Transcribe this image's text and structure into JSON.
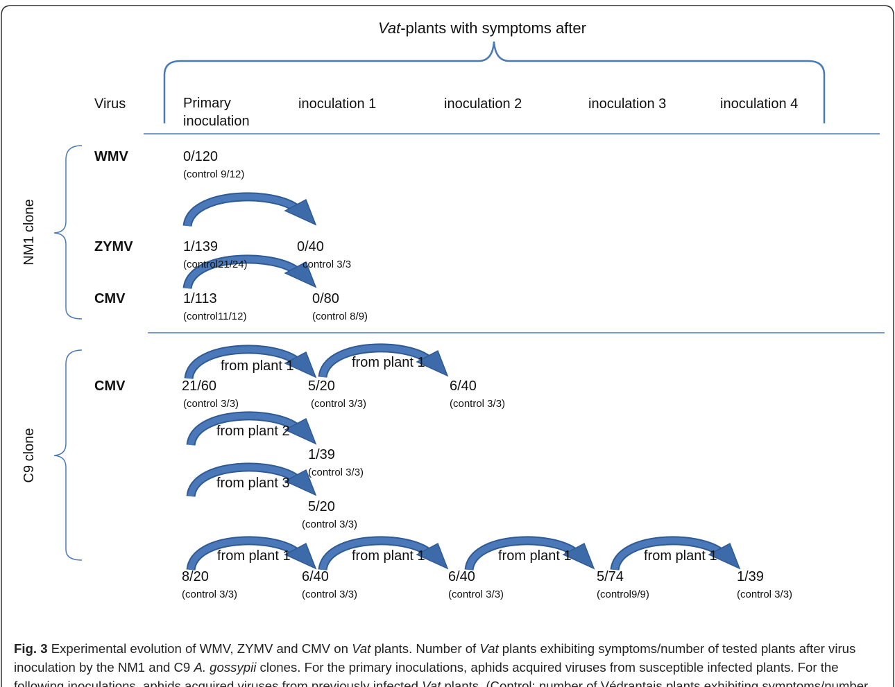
{
  "header": {
    "title_italic": "Vat",
    "title_rest": "-plants with symptoms after",
    "columns": [
      "Virus",
      "Primary inoculation",
      "inoculation 1",
      "inoculation 2",
      "inoculation 3",
      "inoculation 4"
    ]
  },
  "groups": [
    {
      "label": "NM1 clone",
      "rows": [
        {
          "virus": "WMV",
          "cells": [
            {
              "result": "0/120",
              "control": "(control 9/12)"
            }
          ],
          "arrows": []
        },
        {
          "virus": "ZYMV",
          "cells": [
            {
              "result": "1/139",
              "control": "(control21/24)"
            },
            {
              "result": "0/40",
              "control": "control 3/3"
            }
          ],
          "arrows": []
        },
        {
          "virus": "CMV",
          "cells": [
            {
              "result": "1/113",
              "control": "(control11/12)"
            },
            {
              "result": "0/80",
              "control": "(control 8/9)"
            }
          ],
          "arrows": []
        }
      ]
    },
    {
      "label": "C9 clone",
      "rows": [
        {
          "virus": "CMV",
          "cells": [
            {
              "result": "21/60",
              "control": "(control 3/3)"
            },
            {
              "result": "5/20",
              "control": "(control 3/3)"
            },
            {
              "result": "6/40",
              "control": "(control 3/3)"
            }
          ],
          "arrows": [
            "from plant 1",
            "from plant 1"
          ]
        },
        {
          "cells": [
            {
              "result": "1/39",
              "control": "(control 3/3)"
            }
          ],
          "arrows": [
            "from plant 2"
          ]
        },
        {
          "cells": [
            {
              "result": "5/20",
              "control": "(control 3/3)"
            }
          ],
          "arrows": [
            "from plant 3"
          ]
        },
        {
          "cells": [
            {
              "result": "8/20",
              "control": "(control 3/3)"
            },
            {
              "result": "6/40",
              "control": "(control 3/3)"
            },
            {
              "result": "6/40",
              "control": "(control 3/3)"
            },
            {
              "result": "5/74",
              "control": "(control9/9)"
            },
            {
              "result": "1/39",
              "control": "(control 3/3)"
            }
          ],
          "arrows": [
            "from plant 1",
            "from plant 1",
            "from plant 1",
            "from plant 1"
          ]
        }
      ]
    }
  ],
  "caption": {
    "label": "Fig. 3",
    "segments": [
      {
        "text": " Experimental evolution of WMV, ZYMV and CMV on "
      },
      {
        "text": "Vat",
        "italic": true
      },
      {
        "text": " plants. Number of "
      },
      {
        "text": "Vat",
        "italic": true
      },
      {
        "text": " plants exhibiting symptoms/number of tested plants after virus inoculation by the NM1 and C9 "
      },
      {
        "text": "A. gossypii",
        "italic": true
      },
      {
        "text": " clones. For the primary inoculations, aphids acquired viruses from susceptible infected plants. For the following inoculations, aphids acquired viruses from previously infected "
      },
      {
        "text": "Vat",
        "italic": true
      },
      {
        "text": " plants. (Control: number of Védrantais plants exhibiting symptoms/number tested)"
      }
    ]
  }
}
